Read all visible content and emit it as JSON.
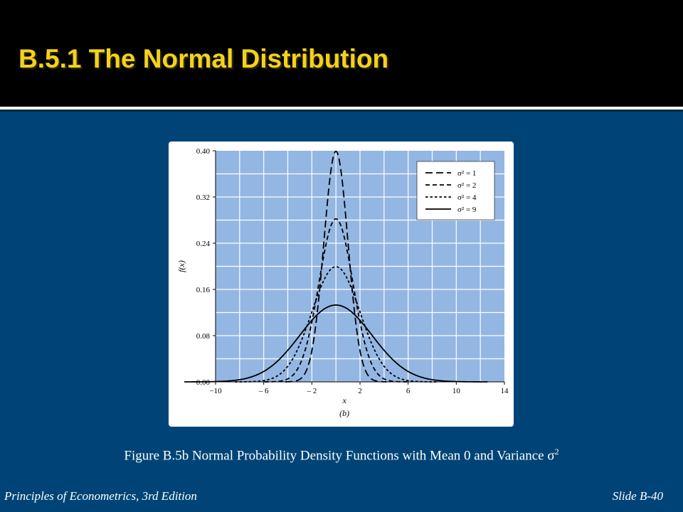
{
  "slide": {
    "title": "B.5.1 The Normal Distribution",
    "caption_text": "Figure B.5b Normal Probability Density Functions with Mean 0 and Variance σ",
    "caption_sup": "2",
    "footer_left": "Principles of Econometrics, 3rd Edition",
    "footer_right": "Slide B-40"
  },
  "colors": {
    "background": "#004477",
    "title": "#f2d21b",
    "plot_area": "#94b6e3"
  },
  "chart_data": {
    "type": "line",
    "title": "",
    "xlabel": "x",
    "ylabel": "f(x)",
    "sublabel": "(b)",
    "xlim": [
      -10,
      14
    ],
    "ylim": [
      0,
      0.4
    ],
    "xticks": [
      -10,
      -6,
      -2,
      2,
      6,
      10,
      14
    ],
    "xtick_labels": [
      "−10",
      "– 6",
      "– 2",
      "2",
      "6",
      "10",
      "14"
    ],
    "yticks": [
      0,
      0.08,
      0.16,
      0.24,
      0.32,
      0.4
    ],
    "ytick_labels": [
      "0.00",
      "0.08",
      "0.16",
      "0.24",
      "0.32",
      "0.40"
    ],
    "grid": true,
    "legend_position": "top-right",
    "distribution": "normal",
    "mean": 0,
    "series": [
      {
        "name": "σ² = 1",
        "variance": 1,
        "peak": 0.4,
        "style": "long-dash"
      },
      {
        "name": "σ² = 2",
        "variance": 2,
        "peak": 0.28,
        "style": "dash"
      },
      {
        "name": "σ² = 4",
        "variance": 4,
        "peak": 0.2,
        "style": "short-dash"
      },
      {
        "name": "σ² = 9",
        "variance": 9,
        "peak": 0.13,
        "style": "solid"
      }
    ]
  }
}
